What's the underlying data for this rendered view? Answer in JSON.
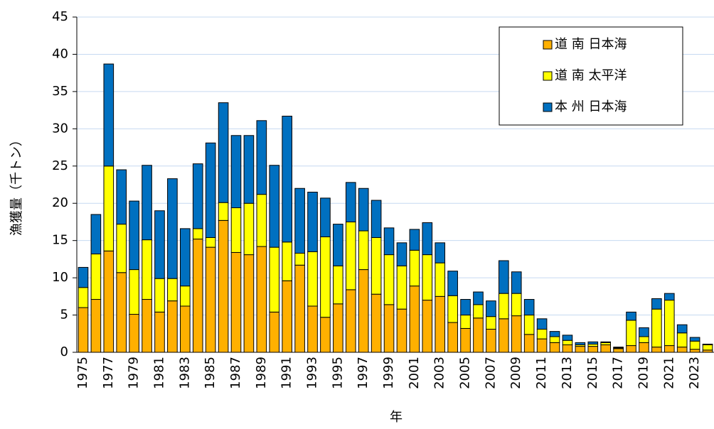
{
  "chart_data": {
    "type": "stacked_bar",
    "xlabel": "年",
    "ylabel": "漁獲量（千トン）",
    "categories": [
      "1975",
      null,
      "1977",
      null,
      "1979",
      null,
      "1981",
      null,
      "1983",
      null,
      "1985",
      null,
      "1987",
      null,
      "1989",
      null,
      "1991",
      null,
      "1993",
      null,
      "1995",
      null,
      "1997",
      null,
      "1999",
      null,
      "2001",
      null,
      "2003",
      null,
      "2005",
      null,
      "2007",
      null,
      "2009",
      null,
      "2011",
      null,
      "2013",
      null,
      "2015",
      null,
      "2017",
      null,
      "2019",
      null,
      "2021",
      null,
      "2023",
      null
    ],
    "series": [
      {
        "name": "道 南 日本海",
        "color": "#ffb000",
        "values": [
          6.0,
          7.1,
          13.6,
          10.7,
          5.1,
          7.1,
          5.4,
          6.9,
          6.2,
          15.2,
          14.1,
          17.7,
          13.4,
          13.1,
          14.2,
          5.4,
          9.6,
          11.7,
          6.2,
          4.7,
          6.5,
          8.4,
          11.1,
          7.8,
          6.4,
          5.8,
          8.9,
          7.0,
          7.5,
          4.0,
          3.2,
          4.6,
          3.1,
          4.5,
          4.9,
          2.4,
          1.8,
          1.3,
          1.0,
          0.8,
          0.8,
          1.0,
          0.5,
          0.9,
          1.3,
          0.7,
          0.9,
          0.7,
          0.4,
          0.3
        ]
      },
      {
        "name": "道 南 太平洋",
        "color": "#ffff00",
        "values": [
          2.7,
          6.1,
          11.4,
          6.5,
          6.0,
          8.0,
          4.5,
          3.0,
          2.7,
          1.4,
          1.3,
          2.4,
          6.0,
          6.9,
          7.0,
          8.7,
          5.2,
          1.6,
          7.3,
          10.8,
          5.1,
          9.1,
          5.2,
          7.6,
          6.7,
          5.8,
          4.8,
          6.1,
          4.5,
          3.6,
          1.8,
          1.8,
          1.7,
          3.4,
          3.0,
          2.6,
          1.3,
          0.8,
          0.6,
          0.2,
          0.3,
          0.3,
          0.1,
          3.4,
          0.8,
          5.1,
          6.1,
          1.9,
          1.1,
          0.7
        ]
      },
      {
        "name": "本 州 日本海",
        "color": "#0070c0",
        "values": [
          2.7,
          5.3,
          13.7,
          7.3,
          9.2,
          10.0,
          9.1,
          13.4,
          7.7,
          8.7,
          12.7,
          13.4,
          9.7,
          9.1,
          9.9,
          11.0,
          16.9,
          8.7,
          8.0,
          5.2,
          5.6,
          5.3,
          5.7,
          5.0,
          3.6,
          3.1,
          2.8,
          4.3,
          2.7,
          3.3,
          2.1,
          1.7,
          2.1,
          4.4,
          2.9,
          2.1,
          1.4,
          0.7,
          0.7,
          0.3,
          0.3,
          0.1,
          0.1,
          1.1,
          1.2,
          1.4,
          0.9,
          1.1,
          0.5,
          0.1
        ]
      }
    ],
    "ylim": [
      0,
      45
    ],
    "yticks": [
      0,
      5,
      10,
      15,
      20,
      25,
      30,
      35,
      40,
      45
    ],
    "grid": true,
    "legend": "upper right"
  }
}
